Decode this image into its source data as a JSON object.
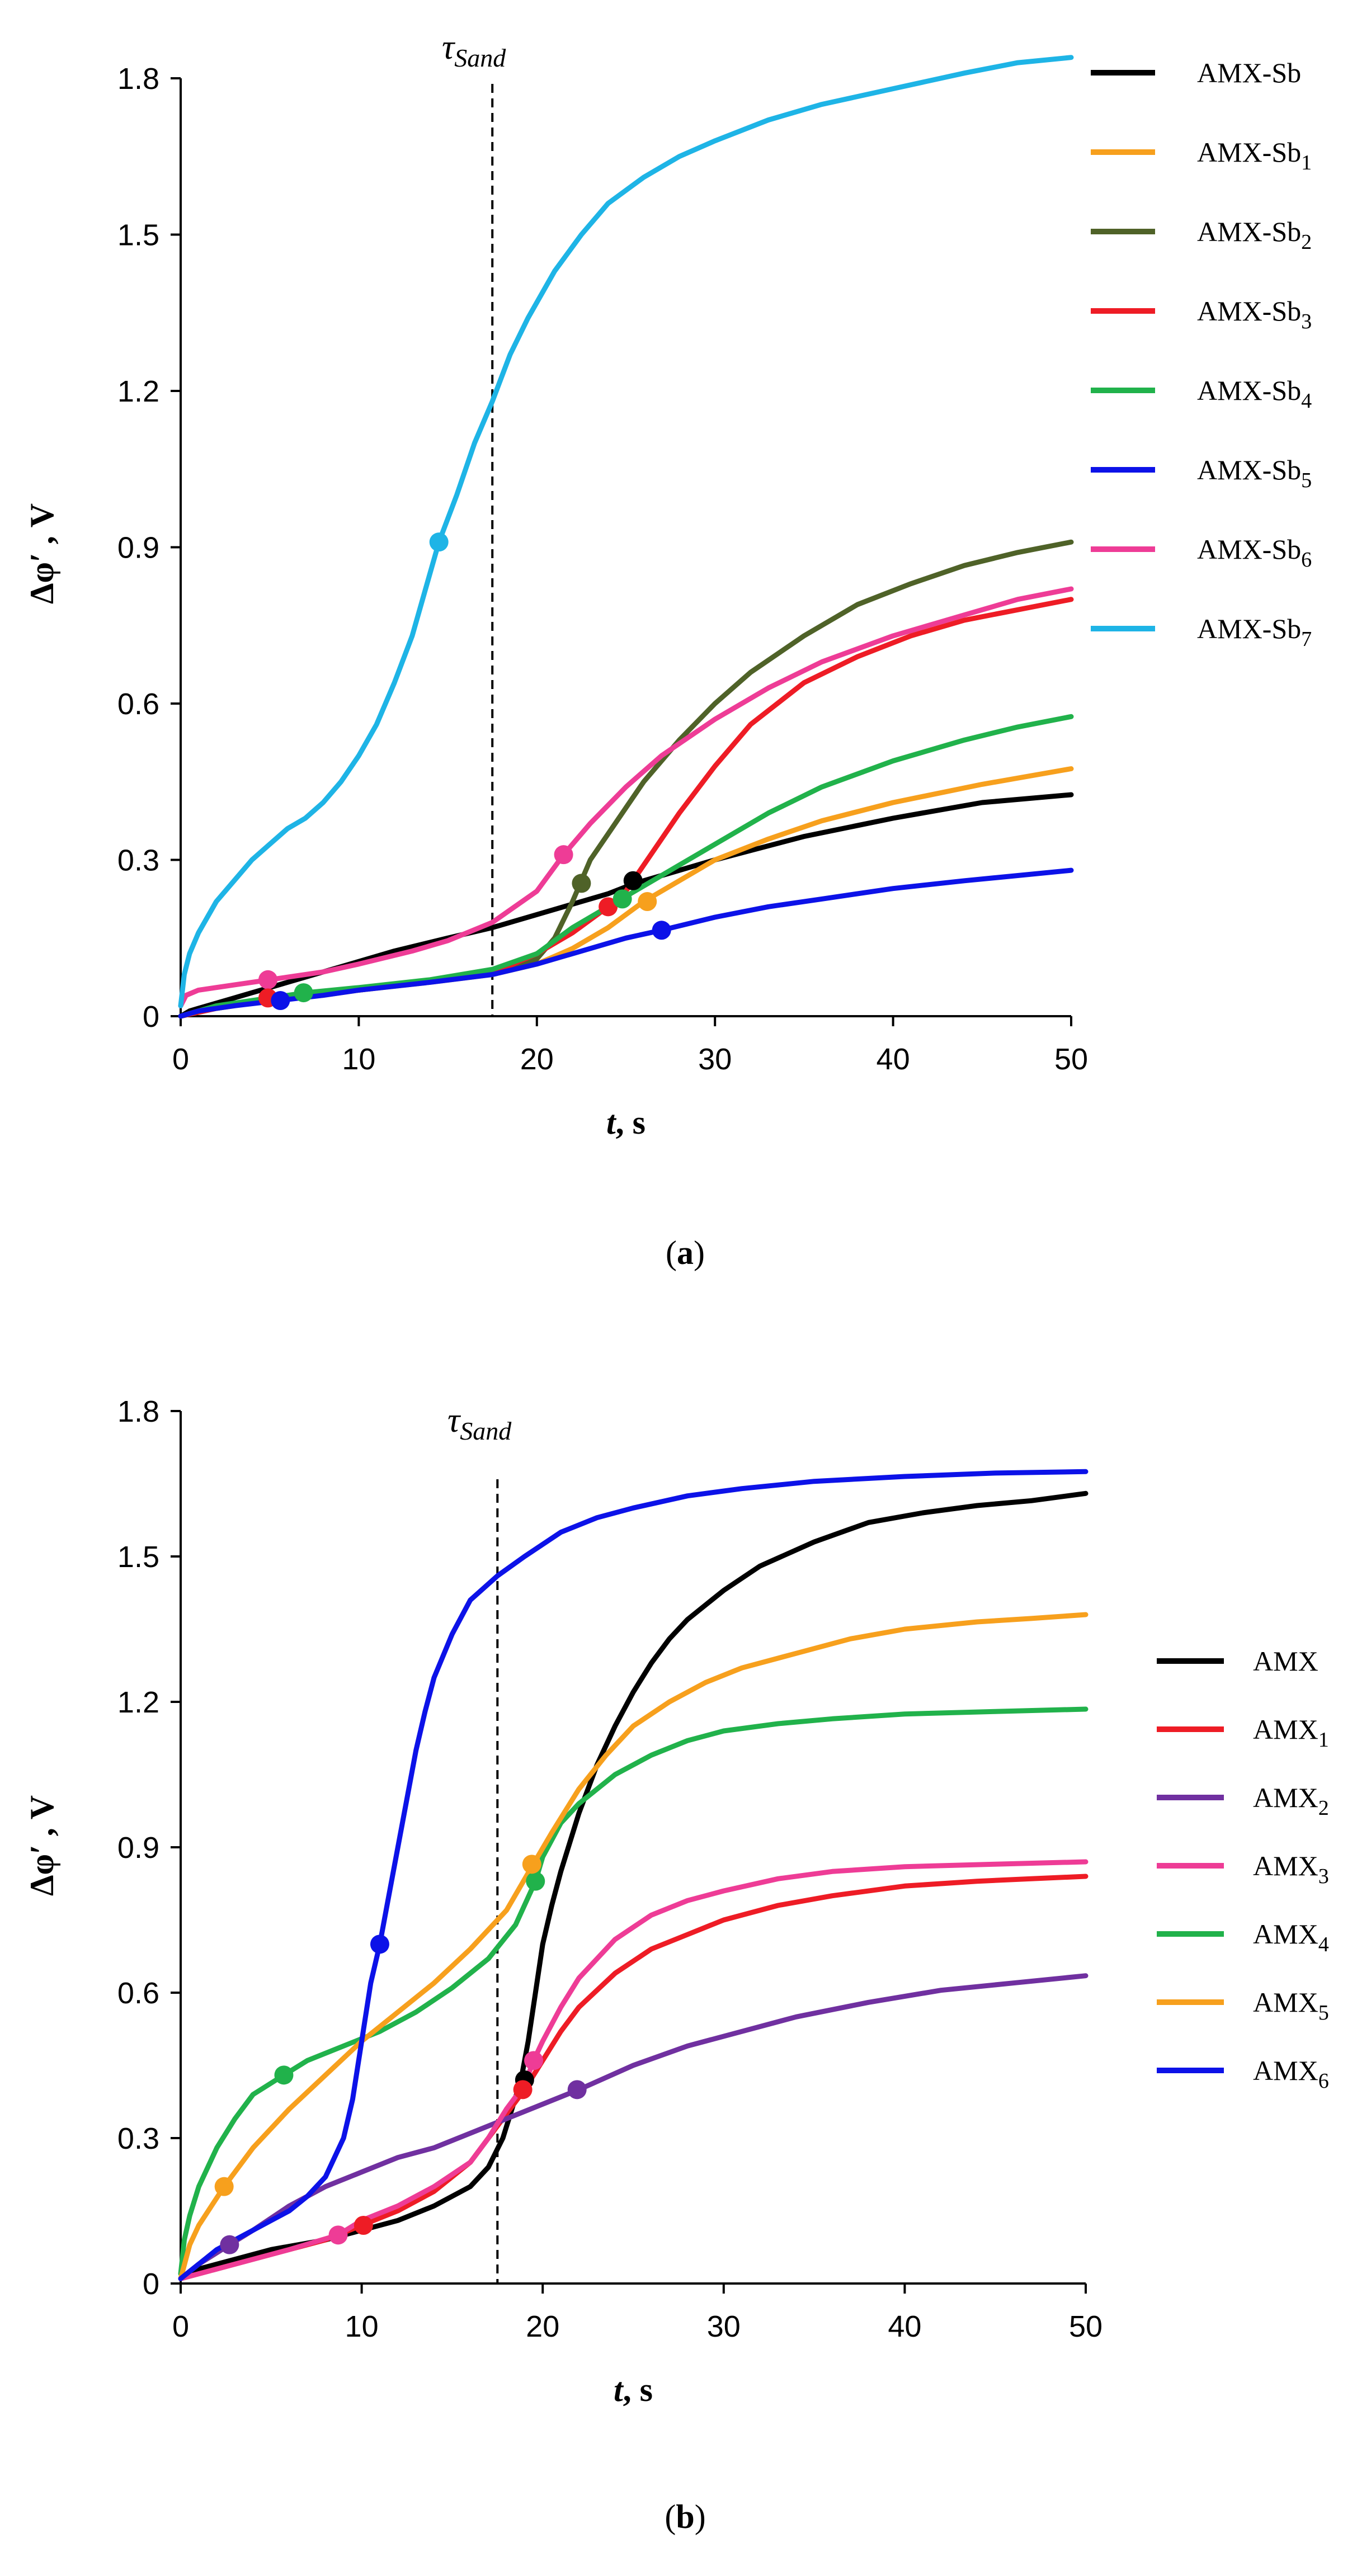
{
  "chart_data": [
    {
      "type": "line",
      "id": "a",
      "caption_letter": "a",
      "xlabel_var": "t",
      "xlabel_unit": ", s",
      "ylabel": "Δφ′ , V",
      "xlim": [
        0,
        50
      ],
      "ylim": [
        0,
        1.8
      ],
      "x_ticks": [
        0,
        10,
        20,
        30,
        40,
        50
      ],
      "y_ticks": [
        0,
        0.3,
        0.6,
        0.9,
        1.2,
        1.5,
        1.8
      ],
      "x_tick_labels": [
        "0",
        "10",
        "20",
        "30",
        "40",
        "50"
      ],
      "y_tick_labels": [
        "0",
        "0.3",
        "0.6",
        "0.9",
        "1.2",
        "1.5",
        "1.8"
      ],
      "tau_label": "τ",
      "tau_sub": "Sand",
      "tau_x": 17.5,
      "series": [
        {
          "name": "AMX-Sb",
          "base": "AMX-Sb",
          "sub": "",
          "color": "#000000",
          "x": [
            0,
            0.5,
            1,
            2,
            3,
            4,
            5,
            6,
            8,
            10,
            12,
            15,
            17.5,
            20,
            22,
            24,
            25.5,
            27,
            30,
            35,
            40,
            45,
            50
          ],
          "y": [
            0,
            0.01,
            0.015,
            0.025,
            0.035,
            0.045,
            0.055,
            0.065,
            0.085,
            0.105,
            0.125,
            0.15,
            0.17,
            0.195,
            0.215,
            0.235,
            0.255,
            0.27,
            0.3,
            0.345,
            0.38,
            0.41,
            0.425
          ],
          "marker": [
            25.4,
            0.26
          ]
        },
        {
          "name": "AMX-Sb1",
          "base": "AMX-Sb",
          "sub": "1",
          "color": "#f7a01d",
          "x": [
            0,
            1,
            3,
            5,
            8,
            10,
            14,
            17.5,
            20,
            22,
            24,
            26,
            28,
            30,
            33,
            36,
            40,
            45,
            50
          ],
          "y": [
            0,
            0.01,
            0.02,
            0.03,
            0.04,
            0.05,
            0.065,
            0.08,
            0.1,
            0.13,
            0.17,
            0.22,
            0.26,
            0.3,
            0.34,
            0.375,
            0.41,
            0.445,
            0.475
          ],
          "marker": [
            26.2,
            0.22
          ]
        },
        {
          "name": "AMX-Sb2",
          "base": "AMX-Sb",
          "sub": "2",
          "color": "#4f6228",
          "x": [
            0,
            2,
            5,
            10,
            15,
            18,
            20,
            21,
            22,
            22.5,
            23,
            24,
            25,
            26,
            28,
            30,
            32,
            35,
            38,
            41,
            44,
            47,
            50
          ],
          "y": [
            0,
            0.015,
            0.03,
            0.05,
            0.07,
            0.09,
            0.11,
            0.15,
            0.22,
            0.26,
            0.3,
            0.35,
            0.4,
            0.45,
            0.53,
            0.6,
            0.66,
            0.73,
            0.79,
            0.83,
            0.865,
            0.89,
            0.91
          ],
          "marker": [
            22.5,
            0.255
          ]
        },
        {
          "name": "AMX-Sb3",
          "base": "AMX-Sb",
          "sub": "3",
          "color": "#ee1c25",
          "x": [
            0,
            2,
            5,
            10,
            15,
            18,
            20,
            22,
            24,
            25,
            26,
            27,
            28,
            30,
            32,
            35,
            38,
            41,
            44,
            47,
            50
          ],
          "y": [
            0,
            0.015,
            0.035,
            0.05,
            0.07,
            0.09,
            0.12,
            0.16,
            0.21,
            0.24,
            0.29,
            0.34,
            0.39,
            0.48,
            0.56,
            0.64,
            0.69,
            0.73,
            0.76,
            0.78,
            0.8
          ],
          "marker": [
            24.0,
            0.21
          ]
        },
        {
          "name": "AMX-Sb4",
          "base": "AMX-Sb",
          "sub": "4",
          "color": "#21b24b",
          "x": [
            0,
            2,
            4,
            7,
            10,
            14,
            17.5,
            20,
            22,
            24,
            25,
            26,
            28,
            30,
            33,
            36,
            40,
            44,
            47,
            50
          ],
          "y": [
            0,
            0.02,
            0.03,
            0.045,
            0.055,
            0.07,
            0.09,
            0.12,
            0.17,
            0.21,
            0.23,
            0.25,
            0.29,
            0.33,
            0.39,
            0.44,
            0.49,
            0.53,
            0.555,
            0.575
          ],
          "marker": [
            24.8,
            0.225
          ]
        },
        {
          "name": "AMX-Sb5",
          "base": "AMX-Sb",
          "sub": "5",
          "color": "#0c12e8",
          "x": [
            0,
            1,
            3,
            5.5,
            8,
            10,
            14,
            17.5,
            20,
            23,
            25,
            27,
            30,
            33,
            36,
            40,
            44,
            47,
            50
          ],
          "y": [
            0,
            0.01,
            0.02,
            0.03,
            0.04,
            0.05,
            0.065,
            0.08,
            0.1,
            0.13,
            0.15,
            0.165,
            0.19,
            0.21,
            0.225,
            0.245,
            0.26,
            0.27,
            0.28
          ],
          "marker": [
            27.0,
            0.165
          ]
        },
        {
          "name": "AMX-Sb6",
          "base": "AMX-Sb",
          "sub": "6",
          "color": "#ee3c96",
          "x": [
            0,
            0.3,
            1,
            3,
            5,
            8,
            10,
            13,
            15,
            17.5,
            20,
            21.5,
            23,
            25,
            27,
            30,
            33,
            36,
            40,
            44,
            47,
            50
          ],
          "y": [
            0.02,
            0.04,
            0.05,
            0.06,
            0.07,
            0.085,
            0.1,
            0.125,
            0.145,
            0.18,
            0.24,
            0.31,
            0.37,
            0.44,
            0.5,
            0.57,
            0.63,
            0.68,
            0.73,
            0.77,
            0.8,
            0.82
          ],
          "marker": [
            21.5,
            0.31
          ]
        },
        {
          "name": "AMX-Sb7",
          "base": "AMX-Sb",
          "sub": "7",
          "color": "#1eb4e6",
          "x": [
            0,
            0.2,
            0.5,
            1,
            2,
            3,
            4,
            5,
            6,
            7,
            8,
            9,
            10,
            11,
            12,
            13,
            14.5,
            15.5,
            16.5,
            17.5,
            18.5,
            19.5,
            21,
            22.5,
            24,
            26,
            28,
            30,
            33,
            36,
            40,
            44,
            47,
            50
          ],
          "y": [
            0.02,
            0.08,
            0.12,
            0.16,
            0.22,
            0.26,
            0.3,
            0.33,
            0.36,
            0.38,
            0.41,
            0.45,
            0.5,
            0.56,
            0.64,
            0.73,
            0.91,
            1.0,
            1.1,
            1.18,
            1.27,
            1.34,
            1.43,
            1.5,
            1.56,
            1.61,
            1.65,
            1.68,
            1.72,
            1.75,
            1.78,
            1.81,
            1.83,
            1.84
          ],
          "marker": [
            14.5,
            0.91
          ]
        }
      ],
      "early_markers": [
        {
          "color": "#ee3c96",
          "x": 4.9,
          "y": 0.07
        },
        {
          "color": "#ee1c25",
          "x": 4.9,
          "y": 0.035
        },
        {
          "color": "#0c12e8",
          "x": 5.6,
          "y": 0.03
        },
        {
          "color": "#21b24b",
          "x": 6.9,
          "y": 0.045
        }
      ]
    },
    {
      "type": "line",
      "id": "b",
      "caption_letter": "b",
      "xlabel_var": "t",
      "xlabel_unit": ", s",
      "ylabel": "Δφ′ , V",
      "xlim": [
        0,
        50
      ],
      "ylim": [
        0,
        1.8
      ],
      "x_ticks": [
        0,
        10,
        20,
        30,
        40,
        50
      ],
      "y_ticks": [
        0,
        0.3,
        0.6,
        0.9,
        1.2,
        1.5,
        1.8
      ],
      "x_tick_labels": [
        "0",
        "10",
        "20",
        "30",
        "40",
        "50"
      ],
      "y_tick_labels": [
        "0",
        "0.3",
        "0.6",
        "0.9",
        "1.2",
        "1.5",
        "1.8"
      ],
      "tau_label": "τ",
      "tau_sub": "Sand",
      "tau_x": 17.5,
      "series": [
        {
          "name": "AMX",
          "base": "AMX",
          "sub": "",
          "color": "#000000",
          "x": [
            0,
            1,
            3,
            5,
            8,
            10,
            12,
            14,
            16,
            17,
            17.8,
            18.3,
            18.8,
            19.2,
            19.6,
            20,
            20.5,
            21,
            22,
            23,
            24,
            25,
            26,
            27,
            28,
            30,
            32,
            35,
            38,
            41,
            44,
            47,
            50
          ],
          "y": [
            0.01,
            0.03,
            0.05,
            0.07,
            0.09,
            0.11,
            0.13,
            0.16,
            0.2,
            0.24,
            0.3,
            0.36,
            0.42,
            0.5,
            0.6,
            0.7,
            0.78,
            0.85,
            0.97,
            1.07,
            1.15,
            1.22,
            1.28,
            1.33,
            1.37,
            1.43,
            1.48,
            1.53,
            1.57,
            1.59,
            1.605,
            1.615,
            1.63
          ],
          "marker": [
            19.0,
            0.42
          ]
        },
        {
          "name": "AMX1",
          "base": "AMX",
          "sub": "1",
          "color": "#ee1c25",
          "x": [
            0,
            2,
            4,
            6,
            8,
            10,
            12,
            14,
            16,
            17,
            18,
            19,
            20,
            21,
            22,
            24,
            26,
            28,
            30,
            33,
            36,
            40,
            44,
            47,
            50
          ],
          "y": [
            0.01,
            0.03,
            0.05,
            0.07,
            0.09,
            0.12,
            0.15,
            0.19,
            0.25,
            0.3,
            0.35,
            0.4,
            0.46,
            0.52,
            0.57,
            0.64,
            0.69,
            0.72,
            0.75,
            0.78,
            0.8,
            0.82,
            0.83,
            0.835,
            0.84
          ],
          "marker": [
            18.9,
            0.4
          ]
        },
        {
          "name": "AMX2",
          "base": "AMX",
          "sub": "2",
          "color": "#7030a0",
          "x": [
            0,
            1,
            2.7,
            4,
            6,
            8,
            10,
            12,
            14,
            16,
            18,
            20,
            22,
            25,
            28,
            31,
            34,
            38,
            42,
            46,
            50
          ],
          "y": [
            0.01,
            0.04,
            0.08,
            0.11,
            0.16,
            0.2,
            0.23,
            0.26,
            0.28,
            0.31,
            0.34,
            0.37,
            0.4,
            0.45,
            0.49,
            0.52,
            0.55,
            0.58,
            0.605,
            0.62,
            0.635
          ],
          "marker": [
            21.9,
            0.4
          ]
        },
        {
          "name": "AMX3",
          "base": "AMX",
          "sub": "3",
          "color": "#ee3c96",
          "x": [
            0,
            2,
            4,
            6,
            8.7,
            10,
            12,
            14,
            16,
            17,
            18,
            19,
            19.5,
            20,
            21,
            22,
            23,
            24,
            26,
            28,
            30,
            33,
            36,
            40,
            45,
            50
          ],
          "y": [
            0.01,
            0.03,
            0.05,
            0.07,
            0.1,
            0.13,
            0.16,
            0.2,
            0.25,
            0.3,
            0.36,
            0.41,
            0.46,
            0.5,
            0.57,
            0.63,
            0.67,
            0.71,
            0.76,
            0.79,
            0.81,
            0.835,
            0.85,
            0.86,
            0.865,
            0.87
          ],
          "marker": [
            19.5,
            0.46
          ]
        },
        {
          "name": "AMX4",
          "base": "AMX",
          "sub": "4",
          "color": "#21b24b",
          "x": [
            0,
            0.2,
            0.5,
            1,
            2,
            3,
            4,
            5.7,
            7,
            9,
            11,
            13,
            15,
            17,
            18.5,
            19.6,
            20,
            21,
            22,
            23,
            24,
            26,
            28,
            30,
            33,
            36,
            40,
            45,
            50
          ],
          "y": [
            0.02,
            0.09,
            0.14,
            0.2,
            0.28,
            0.34,
            0.39,
            0.43,
            0.46,
            0.49,
            0.52,
            0.56,
            0.61,
            0.67,
            0.74,
            0.83,
            0.88,
            0.95,
            0.99,
            1.02,
            1.05,
            1.09,
            1.12,
            1.14,
            1.155,
            1.165,
            1.175,
            1.18,
            1.185
          ],
          "marker": [
            19.6,
            0.83
          ]
        },
        {
          "name": "AMX5",
          "base": "AMX",
          "sub": "5",
          "color": "#f7a01d",
          "x": [
            0,
            0.5,
            1,
            2.4,
            4,
            6,
            8,
            10,
            12,
            14,
            16,
            18,
            19.4,
            20.5,
            22,
            23.5,
            25,
            27,
            29,
            31,
            34,
            37,
            40,
            44,
            47,
            50
          ],
          "y": [
            0.01,
            0.08,
            0.12,
            0.2,
            0.28,
            0.36,
            0.43,
            0.5,
            0.56,
            0.62,
            0.69,
            0.77,
            0.86,
            0.93,
            1.02,
            1.09,
            1.15,
            1.2,
            1.24,
            1.27,
            1.3,
            1.33,
            1.35,
            1.365,
            1.372,
            1.38
          ],
          "marker": [
            19.4,
            0.865
          ]
        },
        {
          "name": "AMX6",
          "base": "AMX",
          "sub": "6",
          "color": "#0c12e8",
          "x": [
            0,
            1,
            2,
            3,
            4,
            5,
            6,
            7,
            8,
            9,
            9.5,
            10,
            10.5,
            11,
            11.5,
            12,
            12.5,
            13,
            13.5,
            14,
            15,
            16,
            17.5,
            19,
            21,
            23,
            25,
            28,
            31,
            35,
            40,
            45,
            50
          ],
          "y": [
            0.01,
            0.04,
            0.07,
            0.09,
            0.11,
            0.13,
            0.15,
            0.18,
            0.22,
            0.3,
            0.38,
            0.5,
            0.62,
            0.7,
            0.8,
            0.9,
            1.0,
            1.1,
            1.18,
            1.25,
            1.34,
            1.41,
            1.46,
            1.5,
            1.55,
            1.58,
            1.6,
            1.625,
            1.64,
            1.655,
            1.665,
            1.672,
            1.675
          ],
          "marker": [
            11.0,
            0.7
          ]
        }
      ],
      "early_markers": [
        {
          "color": "#7030a0",
          "x": 2.7,
          "y": 0.08
        },
        {
          "color": "#f7a01d",
          "x": 2.4,
          "y": 0.2
        },
        {
          "color": "#21b24b",
          "x": 5.7,
          "y": 0.43
        },
        {
          "color": "#ee3c96",
          "x": 8.7,
          "y": 0.1
        },
        {
          "color": "#ee1c25",
          "x": 10.1,
          "y": 0.12
        }
      ]
    }
  ]
}
